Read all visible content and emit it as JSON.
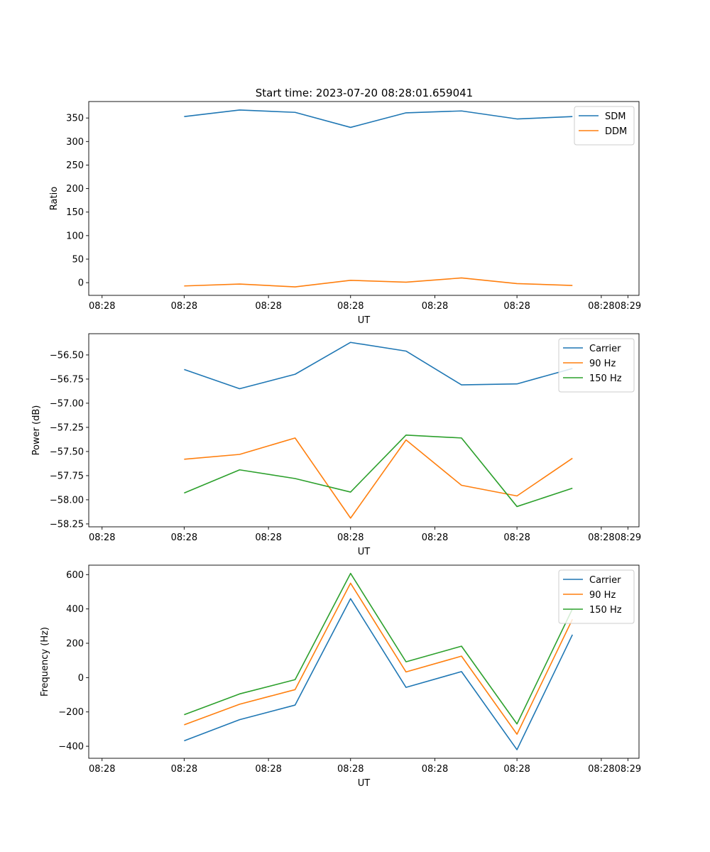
{
  "figure_title": "Start time: 2023-07-20 08:28:01.659041",
  "chart_data": [
    {
      "type": "line",
      "title": "Start time: 2023-07-20 08:28:01.659041",
      "xlabel": "UT",
      "ylabel": "Ratio",
      "x": [
        1,
        2,
        3,
        4,
        5,
        6,
        7,
        8
      ],
      "xlim": [
        -0.72,
        9.2
      ],
      "xticks": [
        {
          "value": -0.48,
          "label": "08:28"
        },
        {
          "value": 1.0,
          "label": "08:28"
        },
        {
          "value": 2.52,
          "label": "08:28"
        },
        {
          "value": 4.0,
          "label": "08:28"
        },
        {
          "value": 5.52,
          "label": "08:28"
        },
        {
          "value": 7.0,
          "label": "08:28"
        },
        {
          "value": 8.52,
          "label": "08:28"
        },
        {
          "value": 9.0,
          "label": "08:29"
        }
      ],
      "ylim": [
        -27,
        385
      ],
      "yticks": [
        0,
        50,
        100,
        150,
        200,
        250,
        300,
        350
      ],
      "legend_position": "upper right",
      "series": [
        {
          "name": "SDM",
          "color": "#1f77b4",
          "values": [
            353,
            367,
            362,
            330,
            361,
            365,
            348,
            353
          ]
        },
        {
          "name": "DDM",
          "color": "#ff7f0e",
          "values": [
            -7,
            -3,
            -9,
            5,
            1,
            10,
            -2,
            -6
          ]
        }
      ]
    },
    {
      "type": "line",
      "title": "",
      "xlabel": "UT",
      "ylabel": "Power (dB)",
      "x": [
        1,
        2,
        3,
        4,
        5,
        6,
        7,
        8
      ],
      "xlim": [
        -0.72,
        9.2
      ],
      "xticks": [
        {
          "value": -0.48,
          "label": "08:28"
        },
        {
          "value": 1.0,
          "label": "08:28"
        },
        {
          "value": 2.52,
          "label": "08:28"
        },
        {
          "value": 4.0,
          "label": "08:28"
        },
        {
          "value": 5.52,
          "label": "08:28"
        },
        {
          "value": 7.0,
          "label": "08:28"
        },
        {
          "value": 8.52,
          "label": "08:28"
        },
        {
          "value": 9.0,
          "label": "08:29"
        }
      ],
      "ylim": [
        -58.28,
        -56.28
      ],
      "yticks": [
        -58.25,
        -58.0,
        -57.75,
        -57.5,
        -57.25,
        -57.0,
        -56.75,
        -56.5
      ],
      "ytick_labels": [
        "−58.25",
        "−58.00",
        "−57.75",
        "−57.50",
        "−57.25",
        "−57.00",
        "−56.75",
        "−56.50"
      ],
      "legend_position": "upper right",
      "series": [
        {
          "name": "Carrier",
          "color": "#1f77b4",
          "values": [
            -56.65,
            -56.85,
            -56.7,
            -56.37,
            -56.46,
            -56.81,
            -56.8,
            -56.64
          ]
        },
        {
          "name": "90 Hz",
          "color": "#ff7f0e",
          "values": [
            -57.58,
            -57.53,
            -57.36,
            -58.19,
            -57.38,
            -57.85,
            -57.96,
            -57.57
          ]
        },
        {
          "name": "150 Hz",
          "color": "#2ca02c",
          "values": [
            -57.93,
            -57.69,
            -57.78,
            -57.92,
            -57.33,
            -57.36,
            -58.07,
            -57.88
          ]
        }
      ]
    },
    {
      "type": "line",
      "title": "",
      "xlabel": "UT",
      "ylabel": "Frequency (Hz)",
      "x": [
        1,
        2,
        3,
        4,
        5,
        6,
        7,
        8
      ],
      "xlim": [
        -0.72,
        9.2
      ],
      "xticks": [
        {
          "value": -0.48,
          "label": "08:28"
        },
        {
          "value": 1.0,
          "label": "08:28"
        },
        {
          "value": 2.52,
          "label": "08:28"
        },
        {
          "value": 4.0,
          "label": "08:28"
        },
        {
          "value": 5.52,
          "label": "08:28"
        },
        {
          "value": 7.0,
          "label": "08:28"
        },
        {
          "value": 8.52,
          "label": "08:28"
        },
        {
          "value": 9.0,
          "label": "08:29"
        }
      ],
      "ylim": [
        -470,
        655
      ],
      "yticks": [
        -400,
        -200,
        0,
        200,
        400,
        600
      ],
      "ytick_labels": [
        "−400",
        "−200",
        "0",
        "200",
        "400",
        "600"
      ],
      "legend_position": "upper right",
      "series": [
        {
          "name": "Carrier",
          "color": "#1f77b4",
          "values": [
            -368,
            -245,
            -160,
            460,
            -57,
            35,
            -420,
            250
          ]
        },
        {
          "name": "90 Hz",
          "color": "#ff7f0e",
          "values": [
            -275,
            -155,
            -70,
            550,
            33,
            125,
            -330,
            340
          ]
        },
        {
          "name": "150 Hz",
          "color": "#2ca02c",
          "values": [
            -216,
            -95,
            -12,
            607,
            92,
            183,
            -270,
            400
          ]
        }
      ]
    }
  ]
}
